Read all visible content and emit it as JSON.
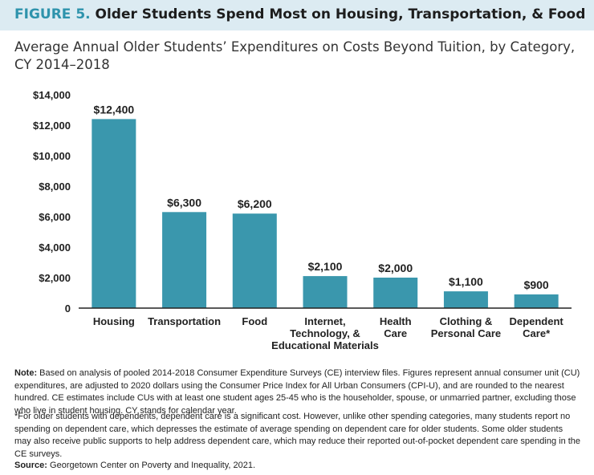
{
  "header": {
    "figure_label": "FIGURE 5.",
    "title": "Older Students Spend Most on Housing, Transportation, & Food"
  },
  "subtitle": "Average Annual Older Students’ Expenditures on Costs Beyond Tuition, by Category, CY 2014–2018",
  "chart_data": {
    "type": "bar",
    "categories": [
      [
        "Housing"
      ],
      [
        "Transportation"
      ],
      [
        "Food"
      ],
      [
        "Internet,",
        "Technology, &",
        "Educational Materials"
      ],
      [
        "Health",
        "Care"
      ],
      [
        "Clothing &",
        "Personal Care"
      ],
      [
        "Dependent",
        "Care*"
      ]
    ],
    "values": [
      12400,
      6300,
      6200,
      2100,
      2000,
      1100,
      900
    ],
    "value_labels": [
      "$12,400",
      "$6,300",
      "$6,200",
      "$2,100",
      "$2,000",
      "$1,100",
      "$900"
    ],
    "ylim": [
      0,
      14000
    ],
    "yticks": [
      0,
      2000,
      4000,
      6000,
      8000,
      10000,
      12000,
      14000
    ],
    "ytick_labels": [
      "0",
      "$2,000",
      "$4,000",
      "$6,000",
      "$8,000",
      "$10,000",
      "$12,000",
      "$14,000"
    ],
    "grid": false,
    "bar_color": "#3a97ad"
  },
  "notes": {
    "note_label": "Note:",
    "note_text": " Based on analysis of pooled 2014-2018 Consumer Expenditure Surveys (CE) interview files. Figures represent annual consumer unit (CU) expenditures, are adjusted to 2020 dollars using the Consumer Price Index for All Urban Consumers (CPI-U), and are rounded to the nearest hundred. CE estimates include CUs with at least one student ages 25-45 who is the householder, spouse, or unmarried partner, excluding those who live in student housing. CY stands for calendar year.",
    "footnote": "*For older students with dependents, dependent care is a significant cost. However, unlike other spending categories, many students report no spending on dependent care, which depresses the estimate of average spending on dependent care for older students. Some older students may also receive public supports to help address dependent care, which may reduce their reported out-of-pocket dependent care spending in the CE surveys.",
    "source_label": "Source:",
    "source_text": " Georgetown Center on Poverty and Inequality, 2021."
  }
}
